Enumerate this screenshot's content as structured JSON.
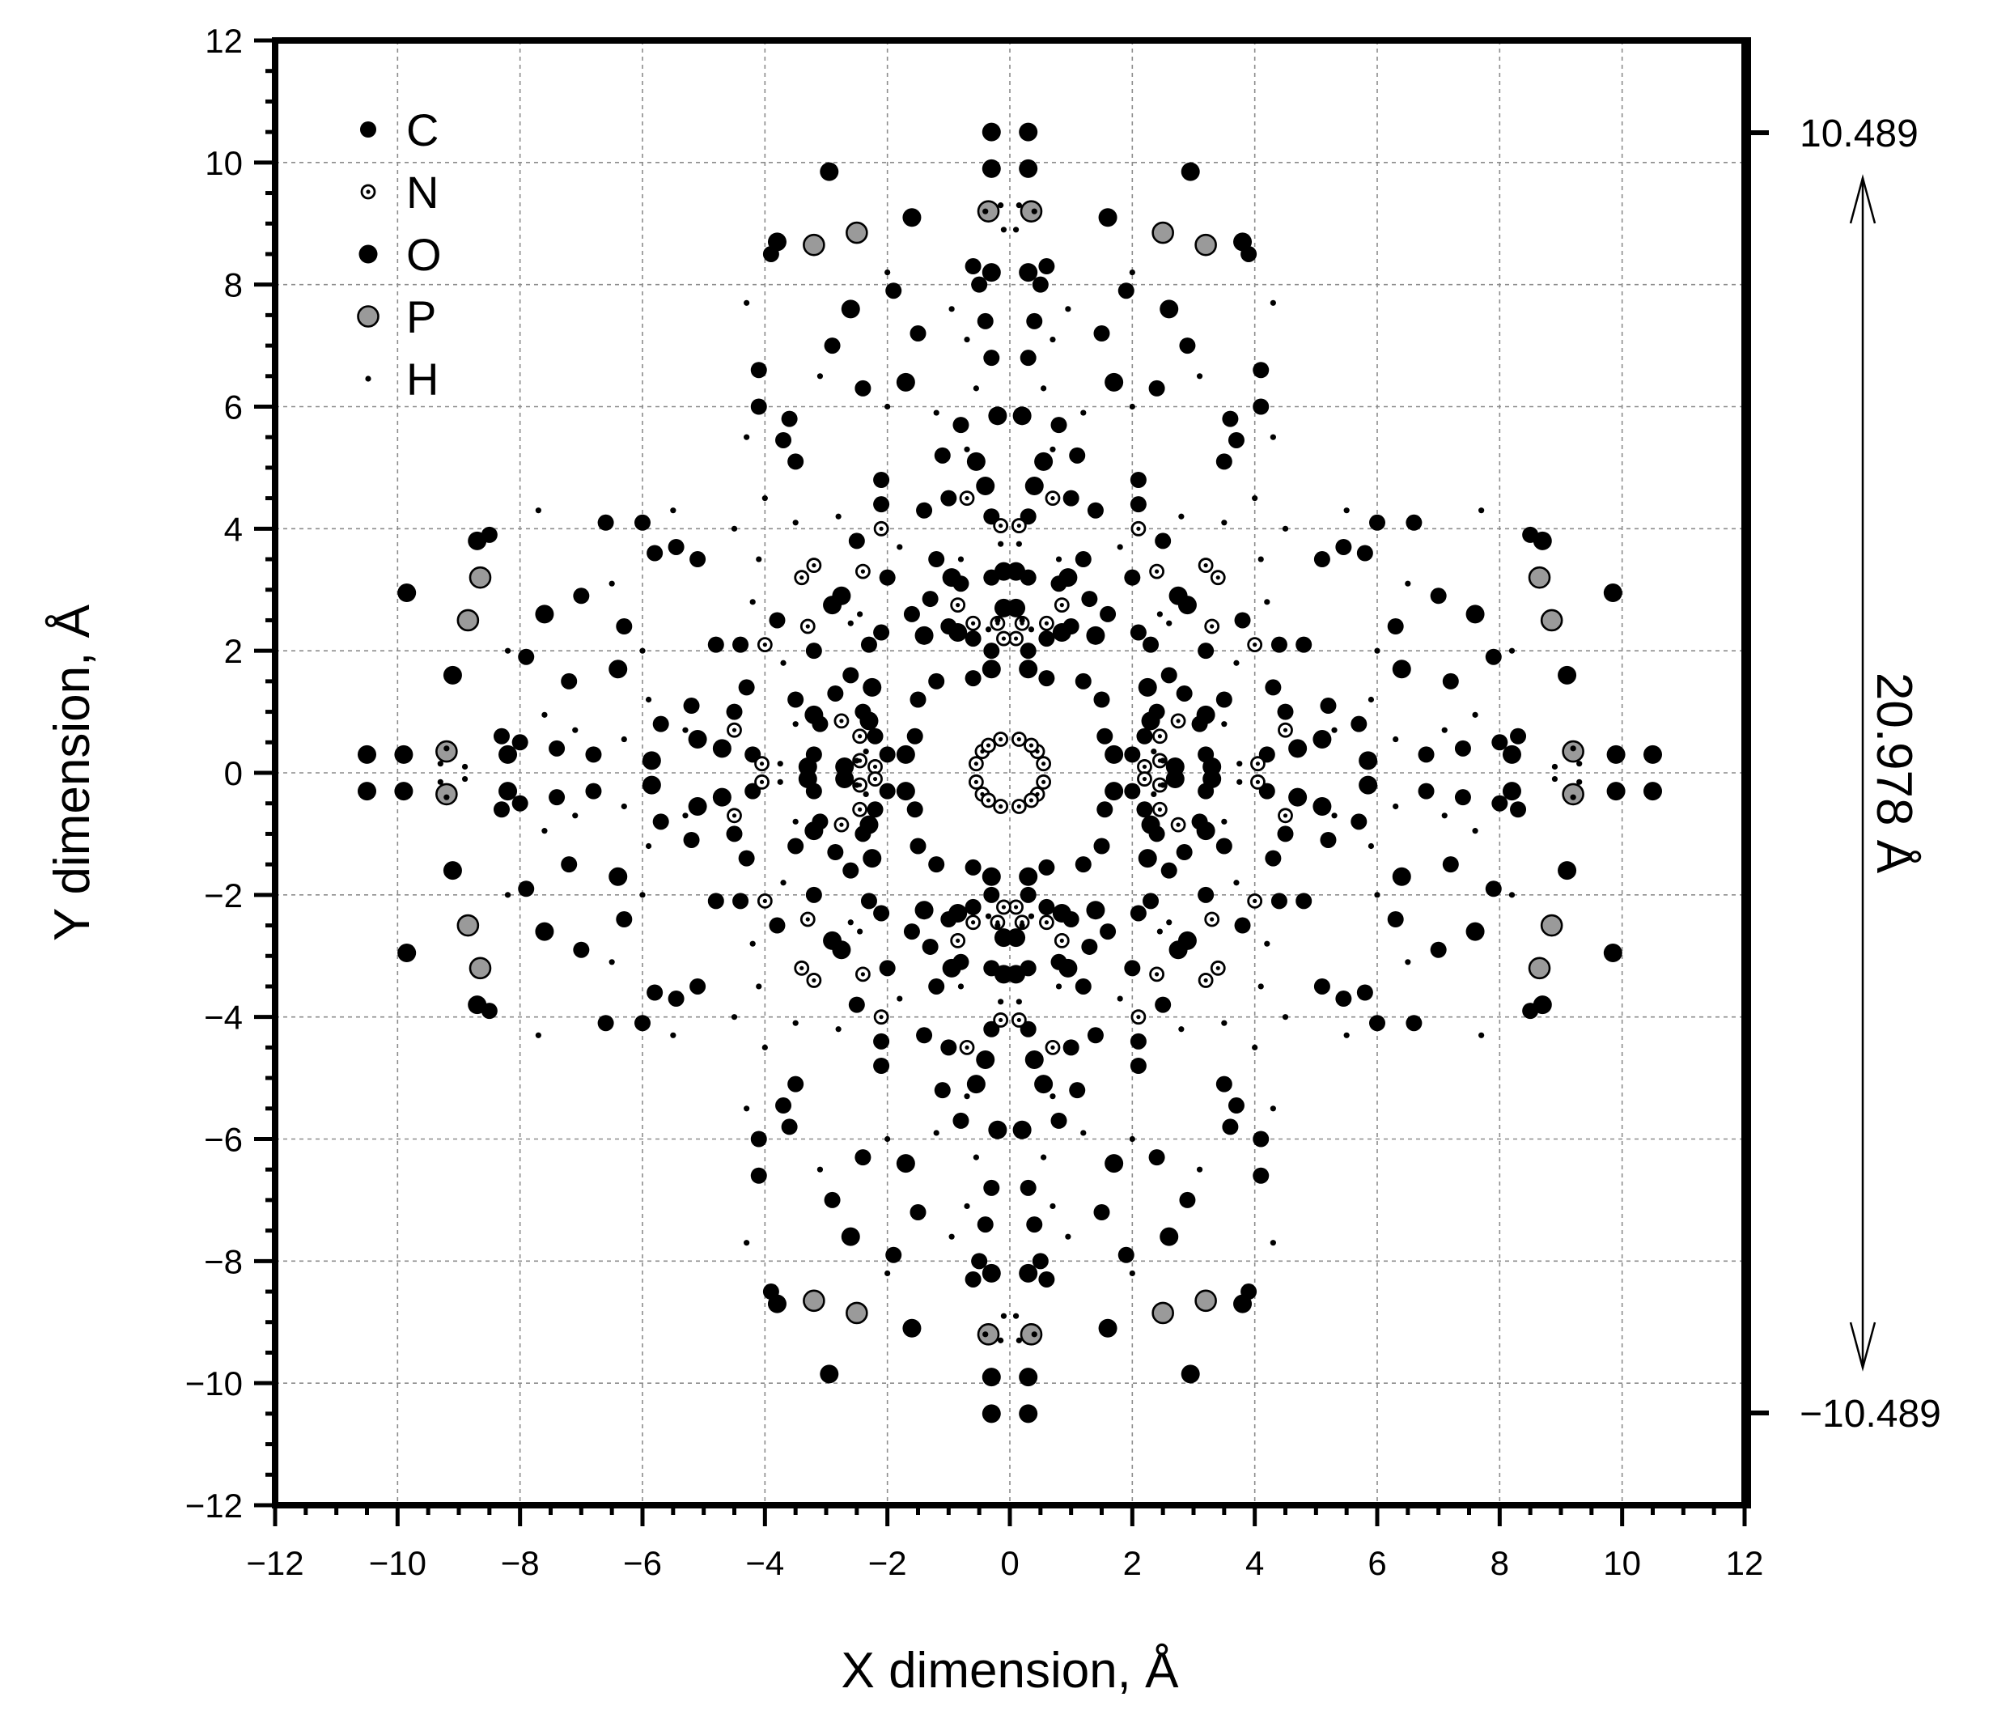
{
  "chart_data": {
    "type": "scatter",
    "title": "",
    "xlabel": "X dimension, Å",
    "ylabel": "Y dimension, Å",
    "xlim": [
      -12,
      12
    ],
    "ylim": [
      -12,
      12
    ],
    "xticks": [
      "−12",
      "−10",
      "−8",
      "−6",
      "−4",
      "−2",
      "0",
      "2",
      "4",
      "6",
      "8",
      "10",
      "12"
    ],
    "yticks": [
      "12",
      "10",
      "8",
      "6",
      "4",
      "2",
      "0",
      "−2",
      "−4",
      "−6",
      "−8",
      "−10",
      "−12"
    ],
    "grid": true,
    "legend_position": "top-left",
    "symmetry": "8-fold rotational, mirror",
    "right_axis": {
      "top_label": "10.489",
      "bottom_label": "−10.489",
      "top_value": 10.489,
      "bottom_value": -10.489,
      "span_label": "20.978 Å"
    },
    "series": [
      {
        "name": "C",
        "marker": "filled-small",
        "points_asymmetric_unit": [
          [
            3.1,
            0.8
          ],
          [
            3.2,
            0.3
          ],
          [
            2.85,
            1.3
          ],
          [
            2.6,
            1.6
          ],
          [
            2.4,
            1.0
          ],
          [
            2.2,
            0.6
          ],
          [
            1.55,
            0.6
          ],
          [
            2.3,
            2.1
          ],
          [
            1.2,
            1.5
          ],
          [
            2.0,
            0.3
          ],
          [
            3.2,
            2.0
          ],
          [
            3.5,
            1.2
          ],
          [
            4.5,
            1.0
          ],
          [
            4.2,
            0.3
          ],
          [
            4.8,
            2.1
          ],
          [
            5.2,
            1.1
          ],
          [
            5.7,
            0.8
          ],
          [
            5.1,
            3.5
          ],
          [
            5.45,
            3.7
          ],
          [
            6.0,
            4.1
          ],
          [
            6.6,
            4.1
          ],
          [
            6.3,
            2.4
          ],
          [
            6.8,
            0.3
          ],
          [
            7.2,
            1.5
          ],
          [
            7.9,
            1.9
          ],
          [
            7.4,
            0.4
          ],
          [
            8.0,
            0.5
          ],
          [
            8.3,
            0.6
          ],
          [
            8.5,
            3.9
          ],
          [
            7.0,
            2.9
          ],
          [
            4.4,
            2.1
          ],
          [
            3.8,
            2.5
          ],
          [
            5.8,
            3.6
          ],
          [
            4.3,
            1.4
          ]
        ]
      },
      {
        "name": "N",
        "marker": "open-dot",
        "points_asymmetric_unit": [
          [
            0.55,
            0.15
          ],
          [
            0.45,
            0.35
          ],
          [
            2.2,
            0.1
          ],
          [
            2.45,
            0.2
          ],
          [
            4.05,
            0.15
          ],
          [
            4.5,
            0.7
          ],
          [
            3.3,
            2.4
          ],
          [
            2.45,
            0.6
          ],
          [
            2.75,
            0.85
          ],
          [
            4.0,
            2.1
          ],
          [
            3.4,
            3.2
          ]
        ]
      },
      {
        "name": "O",
        "marker": "filled-large",
        "points_asymmetric_unit": [
          [
            3.2,
            0.95
          ],
          [
            3.3,
            0.1
          ],
          [
            2.3,
            0.85
          ],
          [
            1.7,
            0.3
          ],
          [
            2.7,
            0.1
          ],
          [
            2.25,
            1.4
          ],
          [
            2.9,
            2.75
          ],
          [
            5.1,
            0.55
          ],
          [
            5.85,
            0.2
          ],
          [
            6.4,
            1.7
          ],
          [
            7.6,
            2.6
          ],
          [
            8.7,
            3.8
          ],
          [
            9.9,
            0.3
          ],
          [
            8.2,
            0.3
          ],
          [
            9.1,
            1.6
          ],
          [
            9.85,
            2.95
          ],
          [
            10.5,
            0.3
          ],
          [
            4.7,
            0.4
          ]
        ]
      },
      {
        "name": "P",
        "marker": "grey-large",
        "points_asymmetric_unit": [
          [
            9.2,
            0.35
          ],
          [
            8.65,
            3.2
          ],
          [
            8.85,
            2.5
          ]
        ]
      },
      {
        "name": "H",
        "marker": "tiny-dot",
        "points_asymmetric_unit": [
          [
            9.3,
            0.15
          ],
          [
            9.2,
            0.4
          ],
          [
            8.9,
            0.1
          ],
          [
            7.6,
            0.95
          ],
          [
            6.3,
            0.55
          ],
          [
            5.3,
            0.7
          ],
          [
            3.75,
            0.15
          ],
          [
            3.5,
            0.8
          ],
          [
            4.1,
            3.5
          ],
          [
            5.5,
            4.3
          ],
          [
            6.5,
            3.1
          ],
          [
            7.7,
            4.3
          ],
          [
            4.2,
            2.8
          ],
          [
            2.6,
            2.45
          ],
          [
            0.2,
            2.5
          ],
          [
            0.35,
            2.35
          ],
          [
            6.0,
            2.0
          ],
          [
            7.1,
            0.7
          ],
          [
            5.9,
            1.2
          ],
          [
            3.7,
            1.8
          ],
          [
            4.5,
            4.0
          ],
          [
            8.2,
            2.0
          ]
        ]
      }
    ]
  }
}
